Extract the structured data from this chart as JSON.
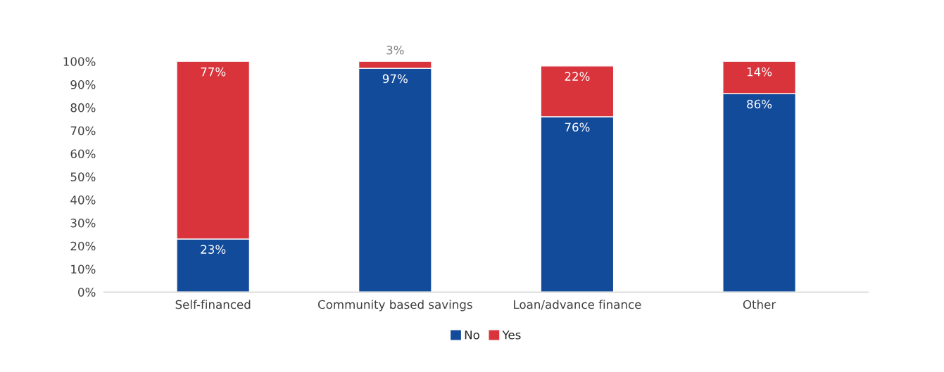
{
  "chart_data": {
    "type": "bar",
    "stacked": true,
    "categories": [
      "Self-financed",
      "Community based savings",
      "Loan/advance finance",
      "Other"
    ],
    "series": [
      {
        "name": "No",
        "color": "#134b9b",
        "values": [
          23,
          97,
          76,
          86
        ],
        "value_labels": [
          "23%",
          "97%",
          "76%",
          "86%"
        ]
      },
      {
        "name": "Yes",
        "color": "#d9333b",
        "values": [
          77,
          3,
          22,
          14
        ],
        "value_labels": [
          "77%",
          "3%",
          "22%",
          "14%"
        ]
      }
    ],
    "ylim": [
      0,
      100
    ],
    "yticks": [
      {
        "value": 0,
        "label": "0%"
      },
      {
        "value": 10,
        "label": "10%"
      },
      {
        "value": 20,
        "label": "20%"
      },
      {
        "value": 30,
        "label": "30%"
      },
      {
        "value": 40,
        "label": "40%"
      },
      {
        "value": 50,
        "label": "50%"
      },
      {
        "value": 60,
        "label": "60%"
      },
      {
        "value": 70,
        "label": "70%"
      },
      {
        "value": 80,
        "label": "80%"
      },
      {
        "value": 90,
        "label": "90%"
      },
      {
        "value": 100,
        "label": "100%"
      }
    ],
    "grid": false,
    "legend": "bottom"
  }
}
